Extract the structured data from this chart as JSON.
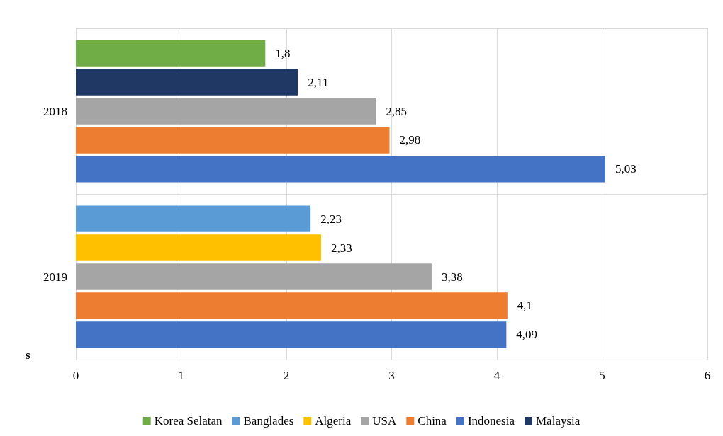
{
  "chart_data": {
    "type": "bar",
    "orientation": "horizontal",
    "categories": [
      "2018",
      "2019"
    ],
    "series": [
      {
        "name": "Korea Selatan",
        "color": "#70ad47",
        "values": [
          1.8,
          null
        ],
        "value_labels": [
          "1,8",
          null
        ]
      },
      {
        "name": "Banglades",
        "color": "#5b9bd5",
        "values": [
          null,
          2.23
        ],
        "value_labels": [
          null,
          "2,23"
        ]
      },
      {
        "name": "Algeria",
        "color": "#ffc000",
        "values": [
          null,
          2.33
        ],
        "value_labels": [
          null,
          "2,33"
        ]
      },
      {
        "name": "USA",
        "color": "#a5a5a5",
        "values": [
          2.85,
          3.38
        ],
        "value_labels": [
          "2,85",
          "3,38"
        ]
      },
      {
        "name": "China",
        "color": "#ed7d31",
        "values": [
          2.98,
          4.1
        ],
        "value_labels": [
          "2,98",
          "4,1"
        ]
      },
      {
        "name": "Indonesia",
        "color": "#4472c4",
        "values": [
          5.03,
          4.09
        ],
        "value_labels": [
          "5,03",
          "4,09"
        ]
      },
      {
        "name": "Malaysia",
        "color": "#203864",
        "values": [
          2.11,
          null
        ],
        "value_labels": [
          "2,11",
          null
        ]
      }
    ],
    "xlim": [
      0,
      6
    ],
    "xticks": [
      0,
      1,
      2,
      3,
      4,
      5,
      6
    ],
    "grid": true,
    "legend": "bottom",
    "annotations": [
      "s"
    ]
  }
}
